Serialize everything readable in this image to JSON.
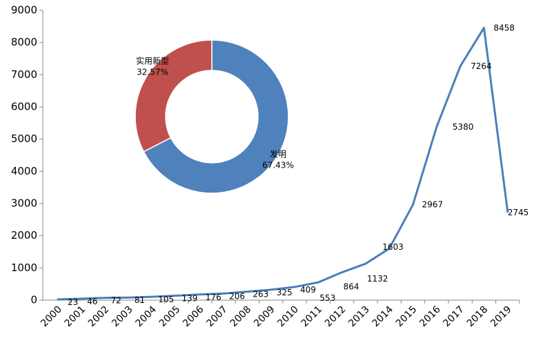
{
  "chart_data": [
    {
      "type": "line",
      "title": "",
      "xlabel": "",
      "ylabel": "",
      "x": [
        "2000",
        "2001",
        "2002",
        "2003",
        "2004",
        "2005",
        "2006",
        "2007",
        "2008",
        "2009",
        "2010",
        "2011",
        "2012",
        "2013",
        "2014",
        "2015",
        "2016",
        "2017",
        "2018",
        "2019"
      ],
      "series": [
        {
          "name": "",
          "values": [
            23,
            46,
            72,
            81,
            105,
            139,
            176,
            206,
            263,
            325,
            409,
            553,
            864,
            1132,
            1603,
            2967,
            5380,
            7264,
            8458,
            2745
          ],
          "color": "#4a7ebb"
        }
      ],
      "ylim": [
        0,
        9000
      ],
      "yticks": [
        "0",
        "1000",
        "2000",
        "3000",
        "4000",
        "5000",
        "6000",
        "7000",
        "8000",
        "9000"
      ],
      "grid": false,
      "data_labels": [
        "23",
        "46",
        "72",
        "81",
        "105",
        "139",
        "176",
        "206",
        "263",
        "325",
        "409",
        "553",
        "864",
        "1132",
        "1603",
        "2967",
        "5380",
        "7264",
        "8458",
        "2745"
      ]
    },
    {
      "type": "pie",
      "style": "donut",
      "slices": [
        {
          "label": "发明",
          "value": 67.43,
          "value_label": "67.43%",
          "color": "#4f81bd"
        },
        {
          "label": "实用新型",
          "value": 32.57,
          "value_label": "32.57%",
          "color": "#c0504d"
        }
      ]
    }
  ]
}
